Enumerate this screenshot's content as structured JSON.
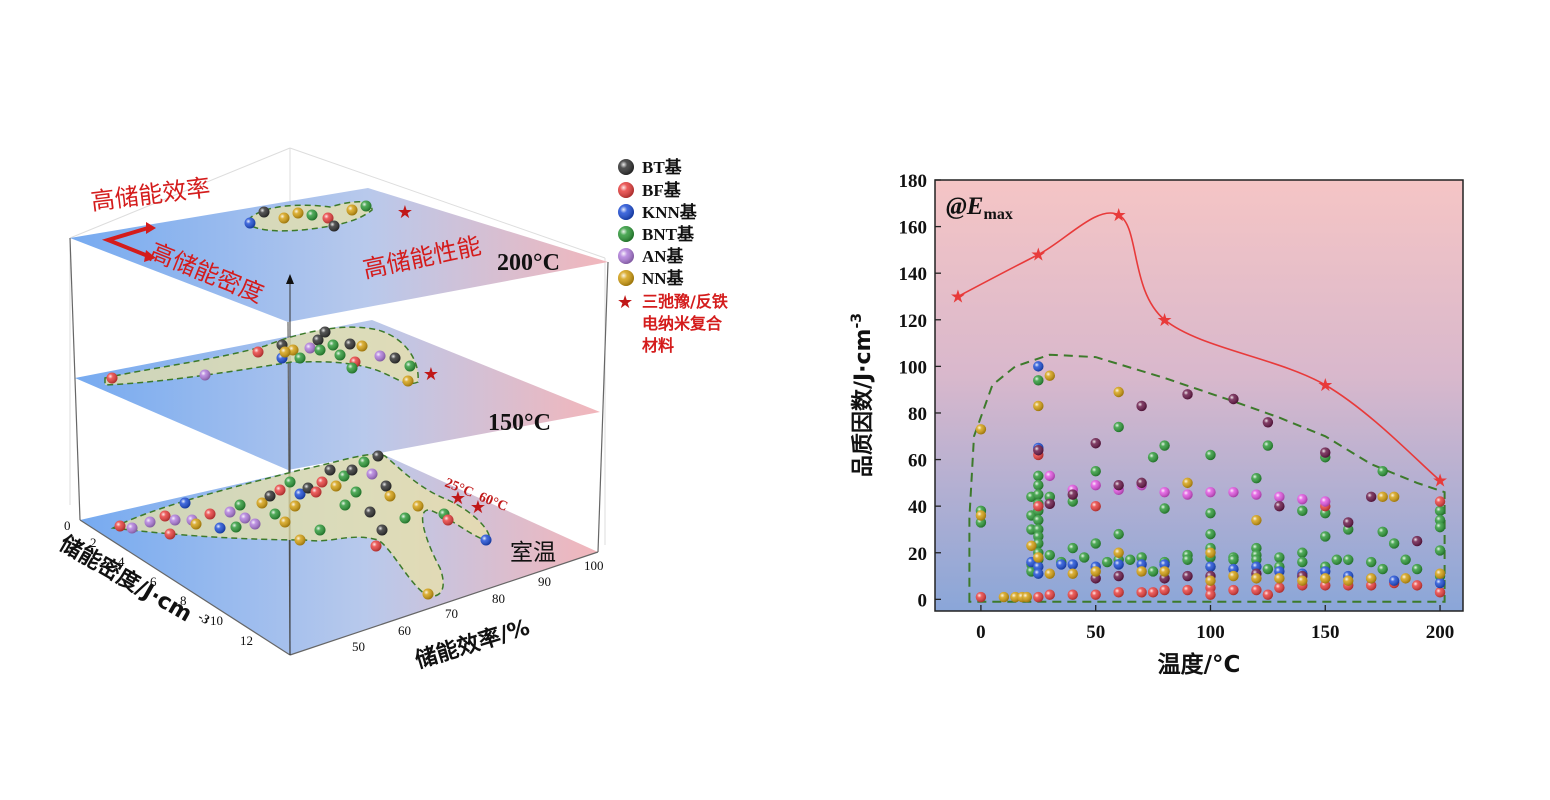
{
  "left_panel": {
    "annotations": {
      "high_efficiency": "高储能效率",
      "high_density": "高储能密度",
      "high_performance": "高储能性能"
    },
    "layers": [
      {
        "label": "200°C",
        "color_left": "#79aef0",
        "color_right": "#f5b7b7"
      },
      {
        "label": "150°C",
        "color_left": "#79aef0",
        "color_right": "#f5b7b7"
      },
      {
        "label": "室温",
        "color_left": "#79aef0",
        "color_right": "#f5b7b7"
      }
    ],
    "star_labels": [
      "25°C",
      "60°C"
    ],
    "axis_density": {
      "label": "储能密度/J·cm",
      "label_sup": "-3",
      "ticks": [
        "0",
        "2",
        "4",
        "6",
        "8",
        "10",
        "12"
      ]
    },
    "axis_efficiency": {
      "label": "储能效率/%",
      "ticks": [
        "50",
        "60",
        "70",
        "80",
        "90",
        "100"
      ]
    },
    "legend": [
      {
        "name": "BT基",
        "color": "#333333",
        "marker": "sphere"
      },
      {
        "name": "BF基",
        "color": "#e8403f",
        "marker": "sphere"
      },
      {
        "name": "KNN基",
        "color": "#1f4fd6",
        "marker": "sphere"
      },
      {
        "name": "BNT基",
        "color": "#2f9a3a",
        "marker": "sphere"
      },
      {
        "name": "AN基",
        "color": "#b07ddb",
        "marker": "sphere"
      },
      {
        "name": "NN基",
        "color": "#d4a012",
        "marker": "sphere"
      },
      {
        "name": "三弛豫/反铁\n电纳米复合\n材料",
        "color": "#cc1f1f",
        "marker": "star"
      }
    ]
  },
  "chart_data": {
    "type": "scatter",
    "title": "@E",
    "title_sub": "max",
    "xlabel": "温度/°C",
    "ylabel": "品质因数/J·cm",
    "ylabel_sup": "-3",
    "xlim": [
      -20,
      210
    ],
    "ylim": [
      -5,
      180
    ],
    "xticks": [
      0,
      50,
      100,
      150,
      200
    ],
    "yticks": [
      0,
      20,
      40,
      60,
      80,
      100,
      120,
      140,
      160,
      180
    ],
    "background_top": "#f3c4c4",
    "background_bottom": "#8ea8d8",
    "series": [
      {
        "color": "#e83a3a",
        "marker": "star",
        "points": [
          [
            -10,
            130
          ],
          [
            25,
            148
          ],
          [
            60,
            165
          ],
          [
            80,
            120
          ],
          [
            150,
            92
          ],
          [
            200,
            51
          ]
        ]
      }
    ],
    "bulk_points": [
      {
        "color": "#2f9a3a",
        "points": [
          [
            0,
            33
          ],
          [
            0,
            38
          ],
          [
            22,
            44
          ],
          [
            22,
            36
          ],
          [
            22,
            30
          ],
          [
            22,
            15
          ],
          [
            22,
            12
          ],
          [
            25,
            94
          ],
          [
            25,
            53
          ],
          [
            25,
            49
          ],
          [
            25,
            45
          ],
          [
            25,
            41
          ],
          [
            25,
            38
          ],
          [
            25,
            34
          ],
          [
            25,
            30
          ],
          [
            25,
            27
          ],
          [
            25,
            24
          ],
          [
            25,
            20
          ],
          [
            25,
            17
          ],
          [
            30,
            44
          ],
          [
            30,
            19
          ],
          [
            35,
            16
          ],
          [
            40,
            22
          ],
          [
            40,
            42
          ],
          [
            45,
            18
          ],
          [
            50,
            55
          ],
          [
            50,
            24
          ],
          [
            55,
            16
          ],
          [
            60,
            74
          ],
          [
            60,
            28
          ],
          [
            60,
            17
          ],
          [
            65,
            17
          ],
          [
            70,
            18
          ],
          [
            75,
            61
          ],
          [
            75,
            12
          ],
          [
            80,
            66
          ],
          [
            80,
            39
          ],
          [
            80,
            16
          ],
          [
            90,
            19
          ],
          [
            90,
            17
          ],
          [
            100,
            62
          ],
          [
            100,
            37
          ],
          [
            100,
            28
          ],
          [
            100,
            22
          ],
          [
            100,
            18
          ],
          [
            100,
            14
          ],
          [
            110,
            18
          ],
          [
            110,
            17
          ],
          [
            120,
            52
          ],
          [
            120,
            22
          ],
          [
            120,
            19
          ],
          [
            120,
            17
          ],
          [
            125,
            66
          ],
          [
            125,
            13
          ],
          [
            130,
            18
          ],
          [
            130,
            14
          ],
          [
            140,
            38
          ],
          [
            140,
            20
          ],
          [
            140,
            16
          ],
          [
            150,
            61
          ],
          [
            150,
            37
          ],
          [
            150,
            27
          ],
          [
            150,
            14
          ],
          [
            155,
            17
          ],
          [
            160,
            17
          ],
          [
            160,
            30
          ],
          [
            170,
            16
          ],
          [
            175,
            55
          ],
          [
            175,
            29
          ],
          [
            175,
            13
          ],
          [
            180,
            24
          ],
          [
            185,
            17
          ],
          [
            190,
            13
          ],
          [
            200,
            38
          ],
          [
            200,
            34
          ],
          [
            200,
            31
          ],
          [
            200,
            21
          ],
          [
            200,
            10
          ]
        ]
      },
      {
        "color": "#e8403f",
        "points": [
          [
            0,
            1
          ],
          [
            25,
            62
          ],
          [
            25,
            40
          ],
          [
            25,
            1
          ],
          [
            30,
            2
          ],
          [
            40,
            2
          ],
          [
            50,
            40
          ],
          [
            50,
            2
          ],
          [
            60,
            3
          ],
          [
            70,
            3
          ],
          [
            75,
            3
          ],
          [
            80,
            4
          ],
          [
            90,
            4
          ],
          [
            100,
            5
          ],
          [
            100,
            2
          ],
          [
            110,
            4
          ],
          [
            120,
            4
          ],
          [
            125,
            2
          ],
          [
            130,
            5
          ],
          [
            140,
            6
          ],
          [
            150,
            40
          ],
          [
            150,
            6
          ],
          [
            160,
            6
          ],
          [
            170,
            6
          ],
          [
            180,
            7
          ],
          [
            190,
            6
          ],
          [
            200,
            42
          ],
          [
            200,
            3
          ]
        ]
      },
      {
        "color": "#1f4fd6",
        "points": [
          [
            25,
            100
          ],
          [
            25,
            65
          ],
          [
            22,
            16
          ],
          [
            25,
            14
          ],
          [
            25,
            11
          ],
          [
            35,
            15
          ],
          [
            40,
            15
          ],
          [
            50,
            14
          ],
          [
            60,
            15
          ],
          [
            70,
            15
          ],
          [
            80,
            15
          ],
          [
            100,
            14
          ],
          [
            110,
            13
          ],
          [
            120,
            14
          ],
          [
            130,
            12
          ],
          [
            140,
            11
          ],
          [
            150,
            12
          ],
          [
            160,
            10
          ],
          [
            170,
            9
          ],
          [
            180,
            8
          ],
          [
            200,
            7
          ]
        ]
      },
      {
        "color": "#e055e0",
        "points": [
          [
            30,
            53
          ],
          [
            40,
            47
          ],
          [
            50,
            49
          ],
          [
            60,
            47
          ],
          [
            70,
            49
          ],
          [
            80,
            46
          ],
          [
            90,
            45
          ],
          [
            100,
            46
          ],
          [
            110,
            46
          ],
          [
            120,
            45
          ],
          [
            130,
            44
          ],
          [
            140,
            43
          ],
          [
            150,
            42
          ]
        ]
      },
      {
        "color": "#6a1a4a",
        "points": [
          [
            25,
            64
          ],
          [
            30,
            41
          ],
          [
            40,
            45
          ],
          [
            50,
            67
          ],
          [
            50,
            9
          ],
          [
            60,
            49
          ],
          [
            60,
            10
          ],
          [
            70,
            83
          ],
          [
            70,
            50
          ],
          [
            80,
            9
          ],
          [
            90,
            88
          ],
          [
            90,
            10
          ],
          [
            100,
            10
          ],
          [
            110,
            86
          ],
          [
            120,
            11
          ],
          [
            125,
            76
          ],
          [
            130,
            40
          ],
          [
            140,
            10
          ],
          [
            150,
            63
          ],
          [
            160,
            33
          ],
          [
            170,
            44
          ],
          [
            190,
            25
          ]
        ]
      },
      {
        "color": "#d4a012",
        "points": [
          [
            0,
            73
          ],
          [
            0,
            36
          ],
          [
            10,
            1
          ],
          [
            15,
            1
          ],
          [
            18,
            1
          ],
          [
            20,
            1
          ],
          [
            22,
            23
          ],
          [
            25,
            83
          ],
          [
            25,
            18
          ],
          [
            30,
            96
          ],
          [
            30,
            11
          ],
          [
            40,
            11
          ],
          [
            50,
            12
          ],
          [
            60,
            89
          ],
          [
            60,
            20
          ],
          [
            70,
            12
          ],
          [
            80,
            12
          ],
          [
            90,
            50
          ],
          [
            100,
            20
          ],
          [
            100,
            8
          ],
          [
            110,
            10
          ],
          [
            120,
            34
          ],
          [
            120,
            9
          ],
          [
            130,
            9
          ],
          [
            140,
            8
          ],
          [
            150,
            9
          ],
          [
            160,
            8
          ],
          [
            170,
            9
          ],
          [
            175,
            44
          ],
          [
            180,
            44
          ],
          [
            185,
            9
          ],
          [
            200,
            11
          ]
        ]
      }
    ]
  }
}
